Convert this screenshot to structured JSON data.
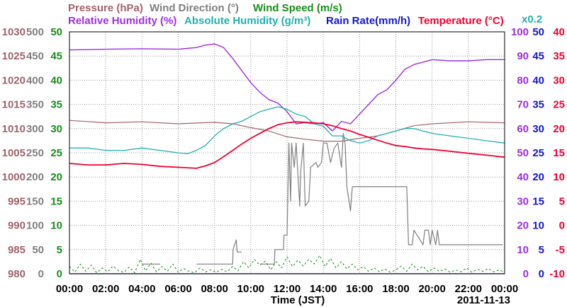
{
  "chart_data": {
    "type": "line",
    "x_unit": "JST",
    "xlim": [
      "00:00",
      "24:00"
    ],
    "xticks": [
      "00:00",
      "02:00",
      "04:00",
      "06:00",
      "08:00",
      "10:00",
      "12:00",
      "14:00",
      "16:00",
      "18:00",
      "20:00",
      "22:00",
      "00:00"
    ],
    "xlabel": "Time (JST)",
    "date_label": "2011-11-13",
    "grid": true,
    "legend": [
      {
        "text": "Pressure (hPa)",
        "color": "#a0636b"
      },
      {
        "text": "Wind Direction (°)",
        "color": "#7f7f7f"
      },
      {
        "text": "Wind Speed (m/s)",
        "color": "#1a8c1a"
      },
      {
        "text": "Relative Humidity (%)",
        "color": "#9b30e0"
      },
      {
        "text": "Absolute Humidity (g/m³)",
        "color": "#20b0b0"
      },
      {
        "text": "Rain Rate(mm/h)",
        "color": "#1515c8"
      },
      {
        "text": "Temperature (°C)",
        "color": "#f00030"
      }
    ],
    "rain_multiplier": "x0.2",
    "axes": {
      "pressure": {
        "color": "#a0636b",
        "range": [
          980,
          1030
        ],
        "ticks": [
          "980",
          "985",
          "990",
          "995",
          "1000",
          "1005",
          "1010",
          "1015",
          "1020",
          "1025",
          "1030"
        ]
      },
      "wind_direction": {
        "color": "#7f7f7f",
        "range": [
          0,
          500
        ],
        "ticks": [
          "0",
          "50",
          "100",
          "150",
          "200",
          "250",
          "300",
          "350",
          "400",
          "450",
          "500"
        ]
      },
      "wind_speed": {
        "color": "#1a8c1a",
        "range": [
          0,
          50
        ],
        "ticks": [
          "0",
          "5",
          "10",
          "15",
          "20",
          "25",
          "30",
          "35",
          "40",
          "45",
          "50"
        ]
      },
      "relative_humidity": {
        "color": "#9b30e0",
        "range": [
          0,
          100
        ],
        "ticks": [
          "0",
          "10",
          "20",
          "30",
          "40",
          "50",
          "60",
          "70",
          "80",
          "90",
          "100"
        ]
      },
      "rain_rate": {
        "color": "#1515c8",
        "range": [
          0,
          50
        ],
        "ticks": [
          "0",
          "5",
          "10",
          "15",
          "20",
          "25",
          "30",
          "35",
          "40",
          "45",
          "50"
        ]
      },
      "temperature": {
        "color": "#f00030",
        "range": [
          -10,
          40
        ],
        "ticks": [
          "-10",
          "-5",
          "0",
          "5",
          "10",
          "15",
          "20",
          "25",
          "30",
          "35",
          "40"
        ]
      }
    },
    "series": [
      {
        "name": "Pressure (hPa)",
        "axis": "pressure",
        "x": [
          0,
          2,
          4,
          6,
          8,
          9,
          10,
          11,
          12,
          13,
          14,
          15,
          16,
          17,
          18,
          19,
          20,
          22,
          24
        ],
        "y": [
          1011.7,
          1011.2,
          1011.4,
          1011.0,
          1011.3,
          1011.0,
          1010.2,
          1009.5,
          1008.3,
          1007.8,
          1007.4,
          1007.4,
          1008.0,
          1008.5,
          1009.5,
          1010.6,
          1011.0,
          1011.4,
          1011.2
        ]
      },
      {
        "name": "Wind Direction (°)",
        "axis": "wind_direction",
        "x": [
          0,
          4.0,
          4.02,
          5.0,
          5.02,
          7.0,
          7.02,
          9.0,
          9.02,
          9.2,
          9.25,
          9.5,
          9.52,
          10.5,
          10.52,
          11.3,
          11.33,
          11.8,
          11.83,
          12.0,
          12.1,
          12.2,
          12.25,
          12.4,
          12.5,
          12.7,
          12.75,
          12.9,
          13.0,
          13.2,
          13.3,
          13.6,
          13.7,
          13.9,
          14.0,
          14.2,
          14.4,
          14.6,
          14.8,
          15.0,
          15.1,
          15.2,
          15.3,
          15.5,
          15.6,
          18.0,
          18.01,
          18.6,
          18.7,
          18.9,
          19.0,
          19.5,
          19.6,
          19.8,
          19.9,
          20.0,
          20.2,
          20.3,
          20.4,
          23.9,
          24
        ],
        "y": [
          null,
          null,
          20,
          20,
          null,
          null,
          20,
          20,
          50,
          70,
          45,
          45,
          null,
          null,
          20,
          20,
          50,
          50,
          80,
          80,
          270,
          150,
          270,
          220,
          270,
          140,
          210,
          270,
          140,
          150,
          220,
          230,
          220,
          230,
          270,
          270,
          230,
          260,
          270,
          220,
          290,
          270,
          180,
          130,
          180,
          180,
          180,
          180,
          60,
          60,
          90,
          60,
          90,
          90,
          60,
          90,
          60,
          90,
          60,
          60,
          null
        ]
      },
      {
        "name": "Wind Speed (m/s)",
        "axis": "wind_speed",
        "x": [
          0,
          0.3,
          0.6,
          0.9,
          1.2,
          1.5,
          1.8,
          2.1,
          2.4,
          2.7,
          3.0,
          3.3,
          3.6,
          3.9,
          4.2,
          4.5,
          4.8,
          5.1,
          5.4,
          5.7,
          6.0,
          6.3,
          6.6,
          6.9,
          7.2,
          7.5,
          7.8,
          8.1,
          8.4,
          8.7,
          9.0,
          9.3,
          9.6,
          9.9,
          10.2,
          10.5,
          10.8,
          11.1,
          11.4,
          11.7,
          12.0,
          12.3,
          12.6,
          12.9,
          13.2,
          13.5,
          13.8,
          14.1,
          14.4,
          14.7,
          15.0,
          15.3,
          15.6,
          15.9,
          16.2,
          16.5,
          16.8,
          17.1,
          17.4,
          17.7,
          18.0,
          18.3,
          18.6,
          18.9,
          19.2,
          19.5,
          19.8,
          20.1,
          20.4,
          20.7,
          21.0,
          21.3,
          21.6,
          21.9,
          22.2,
          22.5,
          22.8,
          23.1,
          23.4,
          23.7,
          24.0
        ],
        "y": [
          1.5,
          0.3,
          2.0,
          0.5,
          1.8,
          0.2,
          1.2,
          0.4,
          1.6,
          0.6,
          0.3,
          1.4,
          0.2,
          3.0,
          0.6,
          2.2,
          0.4,
          1.5,
          0.5,
          2.0,
          0.3,
          1.1,
          0.5,
          0.2,
          1.2,
          0.4,
          0.8,
          0.3,
          0.9,
          0.4,
          1.5,
          0.6,
          2.5,
          1.2,
          3.0,
          1.8,
          2.6,
          0.8,
          2.5,
          1.2,
          3.5,
          1.5,
          2.8,
          1.6,
          3.0,
          2.0,
          3.8,
          1.5,
          3.2,
          1.2,
          2.5,
          1.0,
          2.0,
          0.8,
          1.5,
          0.5,
          1.2,
          0.4,
          1.0,
          0.3,
          0.8,
          1.6,
          0.5,
          2.0,
          0.8,
          1.5,
          0.4,
          1.2,
          0.5,
          1.0,
          0.3,
          0.8,
          0.4,
          1.2,
          0.3,
          0.9,
          0.5,
          1.1,
          0.4,
          0.8,
          0.3
        ]
      },
      {
        "name": "Relative Humidity (%)",
        "axis": "relative_humidity",
        "x": [
          0,
          2,
          4,
          6,
          7,
          7.5,
          8.0,
          8.5,
          9.0,
          9.5,
          10.0,
          10.5,
          11.0,
          11.5,
          12.0,
          12.5,
          13.0,
          13.5,
          14.0,
          14.5,
          15.0,
          15.5,
          16.0,
          16.5,
          17.0,
          17.5,
          18.0,
          18.5,
          19.0,
          19.5,
          20.0,
          21.0,
          22.0,
          23.0,
          24.0
        ],
        "y": [
          92.5,
          92.8,
          93.0,
          92.8,
          93.5,
          94.5,
          95.0,
          93.5,
          89.0,
          84.0,
          79.0,
          75.0,
          72.0,
          70.5,
          67.0,
          62.0,
          62.5,
          62.0,
          62.5,
          59.0,
          63.0,
          62.0,
          66.0,
          70.0,
          74.0,
          76.0,
          80.0,
          84.5,
          86.5,
          87.5,
          88.5,
          88.0,
          88.0,
          88.5,
          88.5
        ]
      },
      {
        "name": "Absolute Humidity (g/m³)",
        "axis": "rain_rate",
        "x": [
          0,
          1,
          2,
          3,
          4,
          5,
          6,
          6.5,
          7,
          7.5,
          8,
          8.5,
          9,
          9.5,
          10,
          10.5,
          11,
          11.5,
          12,
          12.5,
          13,
          13.5,
          14,
          14.5,
          15,
          15.5,
          16,
          16.5,
          17,
          17.5,
          18,
          18.5,
          19,
          19.5,
          20,
          21,
          22,
          23,
          24
        ],
        "y": [
          26.0,
          26.0,
          25.5,
          25.5,
          26.0,
          25.5,
          25.0,
          24.8,
          25.5,
          26.5,
          28.5,
          30.0,
          31.0,
          31.5,
          32.5,
          33.5,
          34.0,
          34.5,
          34.0,
          33.0,
          32.5,
          31.0,
          30.5,
          28.5,
          28.5,
          27.5,
          27.0,
          27.5,
          28.5,
          29.0,
          29.5,
          30.0,
          30.0,
          29.5,
          29.0,
          28.5,
          28.0,
          27.5,
          27.0
        ]
      },
      {
        "name": "Temperature (°C)",
        "axis": "temperature",
        "x": [
          0,
          1,
          2,
          3,
          4,
          5,
          6,
          7,
          7.5,
          8,
          8.5,
          9,
          9.5,
          10,
          10.5,
          11,
          11.5,
          12,
          12.5,
          13,
          13.5,
          14,
          14.5,
          15,
          15.5,
          16,
          16.5,
          17,
          17.5,
          18,
          18.5,
          19,
          19.5,
          20,
          21,
          22,
          23,
          24
        ],
        "y": [
          12.8,
          12.5,
          12.5,
          12.8,
          12.6,
          12.2,
          12.0,
          11.8,
          12.3,
          13.0,
          14.2,
          15.5,
          16.8,
          18.0,
          19.0,
          20.0,
          20.8,
          21.2,
          21.4,
          21.3,
          21.2,
          21.0,
          20.6,
          20.0,
          19.5,
          18.8,
          18.2,
          17.6,
          17.0,
          16.5,
          16.3,
          16.0,
          15.8,
          15.7,
          15.3,
          14.9,
          14.5,
          14.1
        ]
      },
      {
        "name": "Rain Rate(mm/h)",
        "axis": "rain_rate",
        "x": [
          0,
          24
        ],
        "y": [
          0,
          0
        ]
      }
    ]
  }
}
